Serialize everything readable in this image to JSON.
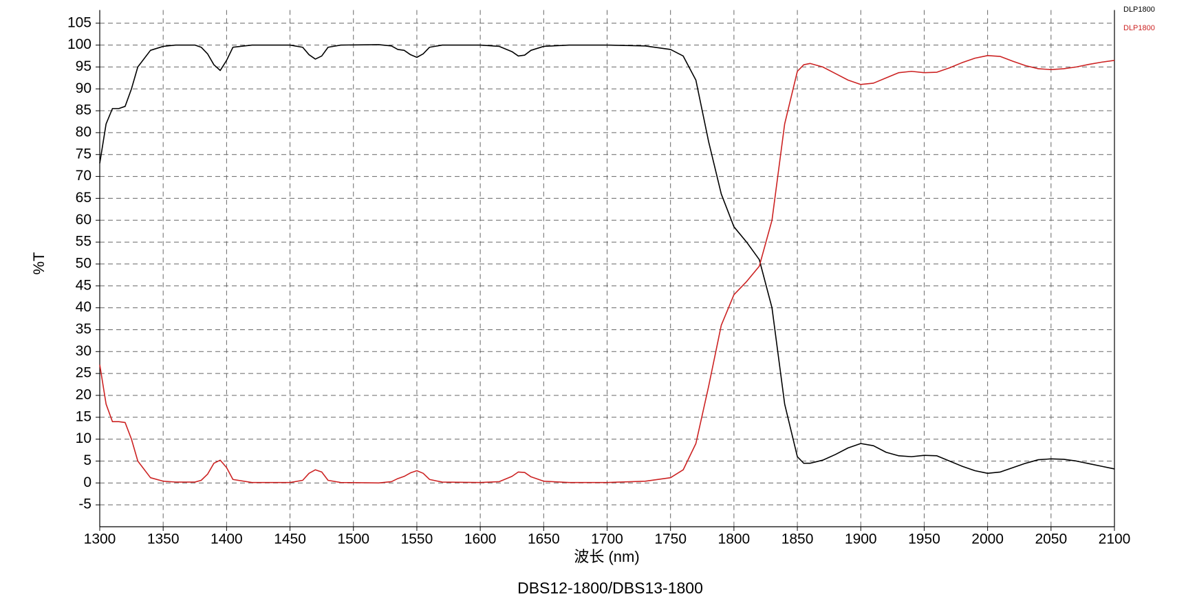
{
  "chart_data": {
    "type": "line",
    "title": "DBS12-1800/DBS13-1800",
    "xlabel": "波长 (nm)",
    "ylabel": "%T",
    "xlim": [
      1300,
      2100
    ],
    "ylim": [
      -10,
      108
    ],
    "xticks": [
      1300,
      1350,
      1400,
      1450,
      1500,
      1550,
      1600,
      1650,
      1700,
      1750,
      1800,
      1850,
      1900,
      1950,
      2000,
      2050,
      2100
    ],
    "yticks": [
      -5,
      0,
      5,
      10,
      15,
      20,
      25,
      30,
      35,
      40,
      45,
      50,
      55,
      60,
      65,
      70,
      75,
      80,
      85,
      90,
      95,
      100,
      105
    ],
    "grid": true,
    "legend": "upper right",
    "x": [
      1300,
      1305,
      1310,
      1315,
      1320,
      1325,
      1330,
      1340,
      1350,
      1360,
      1375,
      1380,
      1385,
      1390,
      1395,
      1400,
      1405,
      1420,
      1450,
      1460,
      1465,
      1470,
      1475,
      1480,
      1490,
      1520,
      1530,
      1535,
      1540,
      1545,
      1550,
      1555,
      1560,
      1570,
      1600,
      1615,
      1625,
      1630,
      1635,
      1640,
      1650,
      1670,
      1700,
      1730,
      1750,
      1760,
      1770,
      1780,
      1790,
      1800,
      1810,
      1820,
      1830,
      1840,
      1850,
      1855,
      1860,
      1870,
      1880,
      1890,
      1900,
      1910,
      1920,
      1930,
      1940,
      1950,
      1960,
      1970,
      1980,
      1990,
      2000,
      2010,
      2020,
      2030,
      2040,
      2050,
      2060,
      2070,
      2080,
      2090,
      2100
    ],
    "series": [
      {
        "name": "DLP1800",
        "color": "#000000",
        "values": [
          73,
          82,
          85.5,
          85.5,
          86,
          90,
          95,
          98.8,
          99.7,
          100,
          100,
          99.5,
          98,
          95.5,
          94.2,
          96.5,
          99.5,
          100,
          100,
          99.5,
          97.8,
          96.8,
          97.5,
          99.5,
          100,
          100.1,
          99.8,
          99,
          98.8,
          97.8,
          97.2,
          98,
          99.5,
          100,
          100,
          99.7,
          98.5,
          97.5,
          97.7,
          98.8,
          99.7,
          100,
          100,
          99.8,
          99,
          97.5,
          92,
          78,
          66,
          58.5,
          55,
          51,
          40,
          18,
          6,
          4.5,
          4.5,
          5.2,
          6.5,
          8,
          9,
          8.5,
          7,
          6.2,
          6,
          6.3,
          6.2,
          5,
          3.8,
          2.8,
          2.2,
          2.5,
          3.5,
          4.5,
          5.3,
          5.5,
          5.4,
          5,
          4.4,
          3.8,
          3.2
        ]
      },
      {
        "name": "DLP1800",
        "color": "#cc2222",
        "values": [
          27,
          18,
          14,
          14,
          13.8,
          10,
          5,
          1.2,
          0.4,
          0.2,
          0.2,
          0.6,
          2,
          4.5,
          5.2,
          3.5,
          0.8,
          0.1,
          0.1,
          0.6,
          2.2,
          3,
          2.5,
          0.6,
          0.1,
          0,
          0.3,
          1,
          1.5,
          2.3,
          2.8,
          2.2,
          0.8,
          0.2,
          0.1,
          0.3,
          1.5,
          2.5,
          2.4,
          1.4,
          0.4,
          0.1,
          0.1,
          0.4,
          1.2,
          3,
          9,
          22,
          36,
          43,
          46,
          49.5,
          60,
          82,
          94,
          95.5,
          95.8,
          95,
          93.5,
          92,
          91,
          91.3,
          92.5,
          93.7,
          94,
          93.7,
          93.8,
          94.8,
          96,
          97,
          97.6,
          97.4,
          96.3,
          95.3,
          94.6,
          94.4,
          94.6,
          95,
          95.6,
          96.1,
          96.5
        ]
      }
    ]
  }
}
